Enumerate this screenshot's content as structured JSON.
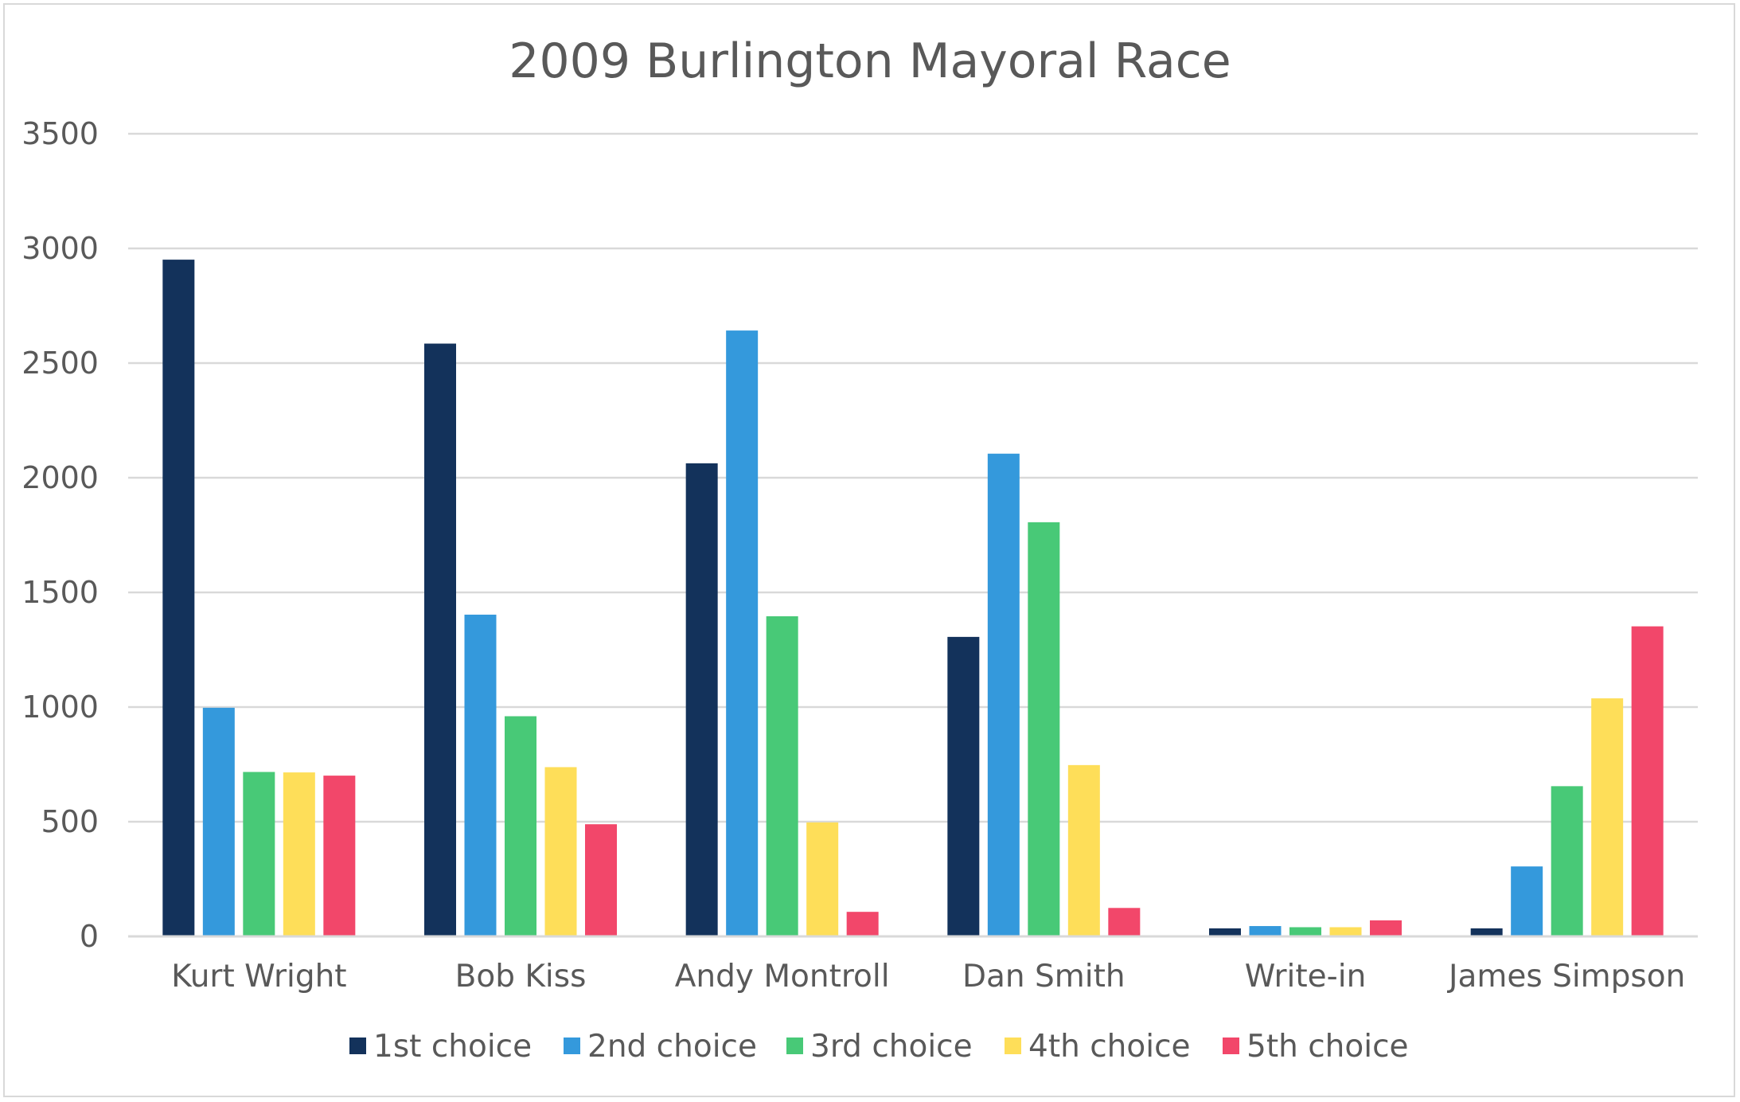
{
  "chart_data": {
    "type": "bar",
    "title": "2009 Burlington Mayoral Race",
    "xlabel": "",
    "ylabel": "",
    "ylim": [
      0,
      3500
    ],
    "yticks": [
      0,
      500,
      1000,
      1500,
      2000,
      2500,
      3000,
      3500
    ],
    "grid": true,
    "legend_position": "bottom",
    "categories": [
      "Kurt Wright",
      "Bob Kiss",
      "Andy Montroll",
      "Dan Smith",
      "Write-in",
      "James Simpson"
    ],
    "series": [
      {
        "name": "1st choice",
        "color": "#13325b",
        "values": [
          2951,
          2585,
          2063,
          1306,
          35,
          35
        ]
      },
      {
        "name": "2nd choice",
        "color": "#3499dc",
        "values": [
          997,
          1403,
          2642,
          2105,
          45,
          305
        ]
      },
      {
        "name": "3rd choice",
        "color": "#48c977",
        "values": [
          717,
          960,
          1396,
          1806,
          40,
          655
        ]
      },
      {
        "name": "4th choice",
        "color": "#fede59",
        "values": [
          715,
          738,
          497,
          747,
          40,
          1038
        ]
      },
      {
        "name": "5th choice",
        "color": "#f2476a",
        "values": [
          701,
          489,
          107,
          124,
          70,
          1352
        ]
      }
    ]
  }
}
